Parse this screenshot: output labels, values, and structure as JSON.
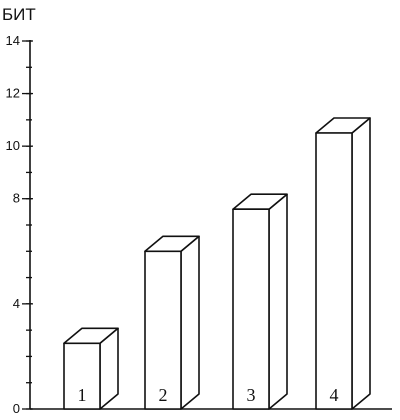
{
  "chart_data": {
    "type": "bar",
    "categories": [
      "1",
      "2",
      "3",
      "4"
    ],
    "values": [
      2.5,
      6,
      7.6,
      10.5
    ],
    "ylabel": "БИТ",
    "ylim": [
      0,
      14
    ],
    "yticks": [
      0,
      4,
      8,
      10,
      12,
      14
    ],
    "grid": false,
    "style": "3d-bars"
  }
}
